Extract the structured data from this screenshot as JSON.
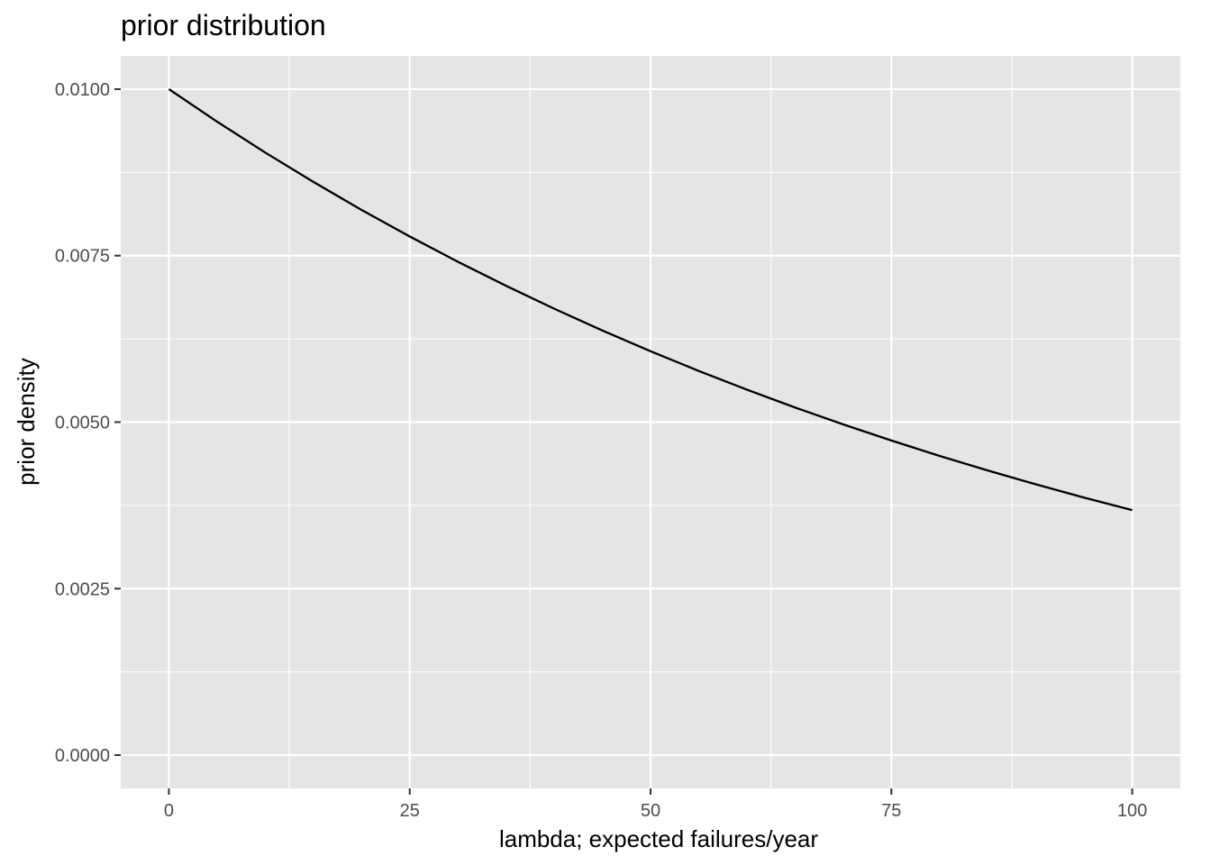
{
  "chart_data": {
    "type": "line",
    "title": "prior distribution",
    "xlabel": "lambda; expected failures/year",
    "ylabel": "prior density",
    "xlim": [
      -5,
      105
    ],
    "ylim": [
      -0.0005,
      0.0105
    ],
    "x_ticks": [
      0,
      25,
      50,
      75,
      100
    ],
    "x_tick_labels": [
      "0",
      "25",
      "50",
      "75",
      "100"
    ],
    "x_minor_ticks": [
      12.5,
      37.5,
      62.5,
      87.5
    ],
    "y_ticks": [
      0,
      0.0025,
      0.005,
      0.0075,
      0.01
    ],
    "y_tick_labels": [
      "0.0000",
      "0.0025",
      "0.0050",
      "0.0075",
      "0.0100"
    ],
    "y_minor_ticks": [
      0.00125,
      0.00375,
      0.00625,
      0.00875
    ],
    "grid": true,
    "legend": "none",
    "series": [
      {
        "x": [
          0,
          5,
          10,
          15,
          20,
          25,
          30,
          35,
          40,
          45,
          50,
          55,
          60,
          65,
          70,
          75,
          80,
          85,
          90,
          95,
          100
        ],
        "y": [
          0.01,
          0.009512,
          0.009048,
          0.008607,
          0.008187,
          0.007788,
          0.007408,
          0.007047,
          0.006703,
          0.006376,
          0.006065,
          0.005769,
          0.005488,
          0.00522,
          0.004966,
          0.004724,
          0.004493,
          0.004274,
          0.004066,
          0.003867,
          0.003679
        ],
        "color": "#000000"
      }
    ],
    "colors": {
      "panel": "#e5e5e5",
      "grid": "#ffffff",
      "tick_text": "#4d4d4d",
      "tick_mark": "#333333"
    }
  }
}
